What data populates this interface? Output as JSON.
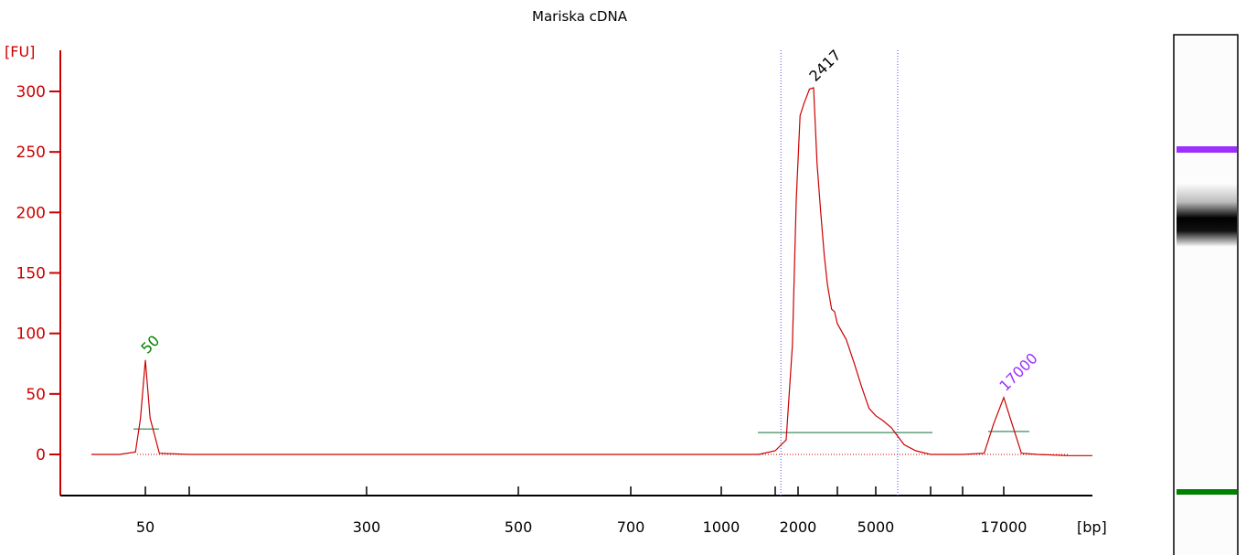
{
  "chart_data": {
    "type": "line",
    "title": "Mariska cDNA",
    "ylabel": "[FU]",
    "xlabel": "[bp]",
    "ylim": [
      -35,
      335
    ],
    "yticks": [
      0,
      50,
      100,
      150,
      200,
      250,
      300
    ],
    "x_scale": "nonlinear (bp sizing ladder)",
    "xtick_labels": [
      "50",
      "300",
      "500",
      "700",
      "1000",
      "2000",
      "5000",
      "17000"
    ],
    "markers": [
      {
        "label": "50",
        "color": "#008000"
      },
      {
        "label": "17000",
        "color": "#9b30ff"
      }
    ],
    "peaks": [
      {
        "label": "50",
        "bp": 50,
        "fu": 78,
        "color": "#008000"
      },
      {
        "label": "2417",
        "bp": 2417,
        "fu": 303,
        "color": "#000000"
      },
      {
        "label": "17000",
        "bp": 17000,
        "fu": 47,
        "color": "#9b30ff"
      }
    ],
    "region": {
      "from_bp": 1600,
      "to_bp": 6000
    },
    "series": [
      {
        "color": "#cc0000",
        "points": [
          [
            40,
            0
          ],
          [
            45,
            0
          ],
          [
            48,
            2
          ],
          [
            49,
            30
          ],
          [
            50,
            78
          ],
          [
            51,
            30
          ],
          [
            53,
            1
          ],
          [
            60,
            0
          ],
          [
            100,
            0
          ],
          [
            300,
            0
          ],
          [
            500,
            0
          ],
          [
            700,
            0
          ],
          [
            1000,
            0
          ],
          [
            1300,
            0
          ],
          [
            1500,
            3
          ],
          [
            1700,
            12
          ],
          [
            1850,
            90
          ],
          [
            1950,
            210
          ],
          [
            2050,
            280
          ],
          [
            2150,
            290
          ],
          [
            2300,
            302
          ],
          [
            2417,
            303
          ],
          [
            2550,
            240
          ],
          [
            2700,
            200
          ],
          [
            2850,
            165
          ],
          [
            3000,
            140
          ],
          [
            3200,
            120
          ],
          [
            3350,
            118
          ],
          [
            3500,
            108
          ],
          [
            3800,
            95
          ],
          [
            4100,
            75
          ],
          [
            4400,
            55
          ],
          [
            4700,
            38
          ],
          [
            5000,
            32
          ],
          [
            5300,
            28
          ],
          [
            5700,
            22
          ],
          [
            6000,
            15
          ],
          [
            6500,
            8
          ],
          [
            7500,
            3
          ],
          [
            9000,
            0
          ],
          [
            12000,
            0
          ],
          [
            14000,
            0
          ],
          [
            15500,
            1
          ],
          [
            16200,
            25
          ],
          [
            17000,
            47
          ],
          [
            17700,
            25
          ],
          [
            18500,
            1
          ],
          [
            20000,
            0
          ],
          [
            23000,
            -1
          ],
          [
            26000,
            -1
          ]
        ]
      }
    ],
    "legend": "none",
    "grid": false
  },
  "gel": {
    "bands": [
      {
        "name": "upper-marker",
        "color": "#9b30ff"
      },
      {
        "name": "sample-band",
        "color": "#000000"
      },
      {
        "name": "lower-marker",
        "color": "#008000"
      }
    ]
  }
}
